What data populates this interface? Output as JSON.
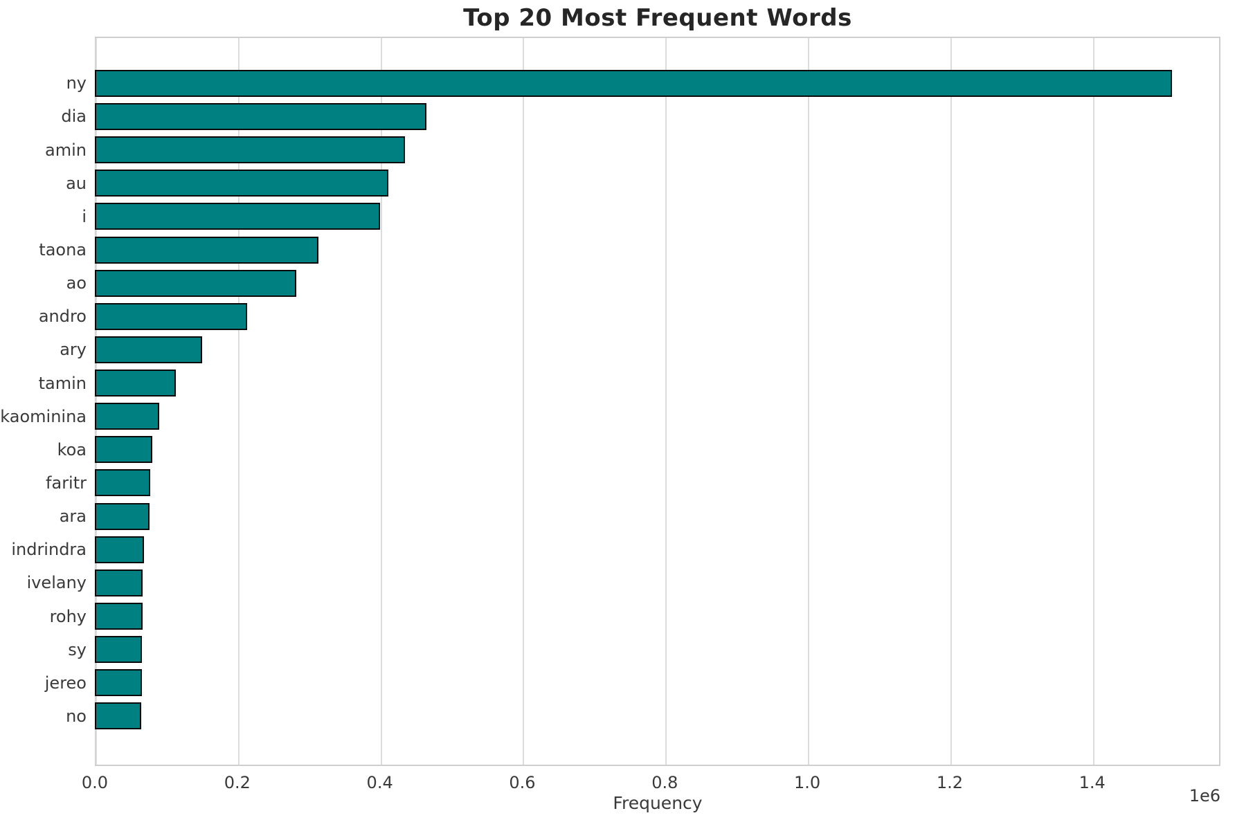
{
  "chart_data": {
    "type": "bar",
    "orientation": "horizontal",
    "title": "Top 20 Most Frequent Words",
    "xlabel": "Frequency",
    "ylabel": "",
    "offset_text": "1e6",
    "categories": [
      "ny",
      "dia",
      "amin",
      "au",
      "i",
      "taona",
      "ao",
      "andro",
      "ary",
      "tamin",
      "kaominina",
      "koa",
      "faritr",
      "ara",
      "indrindra",
      "ivelany",
      "rohy",
      "sy",
      "jereo",
      "no"
    ],
    "values": [
      1512000,
      465000,
      435000,
      412000,
      400000,
      314000,
      283000,
      214000,
      151000,
      114000,
      90000,
      81000,
      78000,
      77000,
      69000,
      67000,
      67000,
      66000,
      66000,
      65000
    ],
    "xlim": [
      0,
      1580000
    ],
    "xticks": [
      0,
      200000,
      400000,
      600000,
      800000,
      1000000,
      1200000,
      1400000
    ],
    "xtick_labels": [
      "0.0",
      "0.2",
      "0.4",
      "0.6",
      "0.8",
      "1.0",
      "1.2",
      "1.4"
    ],
    "grid": true,
    "legend": false,
    "bar_color": "#008080",
    "bar_edge_color": "#0a0a0a",
    "grid_color": "#dcdcdc"
  }
}
